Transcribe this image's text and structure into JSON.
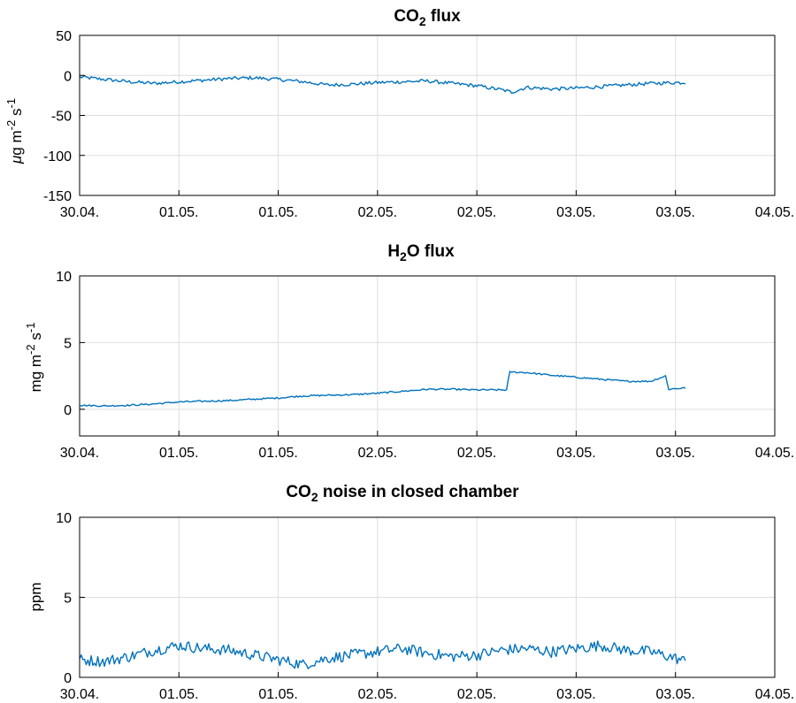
{
  "chart_data": [
    {
      "type": "line",
      "title": "CO2 flux",
      "title_main": "CO",
      "title_sub": "2",
      "title_rest": " flux",
      "ylabel": "µg m-2 s-1",
      "ylabel_parts": {
        "a": "μ",
        "b": "g m",
        "c": "-2",
        "d": " s",
        "e": "-1"
      },
      "xlim": [
        0,
        7
      ],
      "ylim": [
        -150,
        50
      ],
      "yticks": [
        -150,
        -100,
        -50,
        0,
        50
      ],
      "ytick_labels": [
        "-150",
        "-100",
        "-50",
        "0",
        "50"
      ],
      "xtick_labels": [
        "30.04.",
        "01.05.",
        "01.05.",
        "02.05.",
        "02.05.",
        "03.05.",
        "03.05.",
        "04.05."
      ],
      "grid": true,
      "color": "#0072bd",
      "series": [
        {
          "x": [
            0,
            0.25,
            0.5,
            0.75,
            1.0,
            1.25,
            1.5,
            1.75,
            2.0,
            2.25,
            2.5,
            2.75,
            3.0,
            3.25,
            3.5,
            3.75,
            4.0,
            4.25,
            4.35,
            4.5,
            4.75,
            5.0,
            5.25,
            5.5,
            5.75,
            6.0,
            6.1
          ],
          "y": [
            -2,
            -5,
            -8,
            -10,
            -8,
            -6,
            -4,
            -3,
            -5,
            -8,
            -12,
            -11,
            -9,
            -8,
            -7,
            -10,
            -13,
            -18,
            -21,
            -15,
            -17,
            -16,
            -14,
            -12,
            -10,
            -9,
            -9
          ]
        }
      ]
    },
    {
      "type": "line",
      "title": "H2O flux",
      "title_main": "H",
      "title_sub": "2",
      "title_rest": "O flux",
      "ylabel": "mg m-2 s-1",
      "ylabel_parts": {
        "a": "",
        "b": "mg m",
        "c": "-2",
        "d": " s",
        "e": "-1"
      },
      "xlim": [
        0,
        7
      ],
      "ylim": [
        -2,
        10
      ],
      "yticks": [
        0,
        5,
        10
      ],
      "ytick_labels": [
        "0",
        "5",
        "10"
      ],
      "xtick_labels": [
        "30.04.",
        "01.05.",
        "01.05.",
        "02.05.",
        "02.05.",
        "03.05.",
        "03.05.",
        "04.05."
      ],
      "grid": true,
      "color": "#0072bd",
      "series": [
        {
          "x": [
            0,
            0.25,
            0.5,
            0.75,
            1.0,
            1.25,
            1.5,
            1.75,
            2.0,
            2.25,
            2.5,
            2.75,
            3.0,
            3.25,
            3.5,
            3.75,
            4.0,
            4.3,
            4.33,
            4.5,
            4.75,
            5.0,
            5.25,
            5.5,
            5.75,
            5.9,
            5.93,
            6.0,
            6.1
          ],
          "y": [
            0.3,
            0.25,
            0.3,
            0.4,
            0.55,
            0.6,
            0.65,
            0.75,
            0.85,
            1.0,
            1.05,
            1.1,
            1.2,
            1.35,
            1.5,
            1.5,
            1.45,
            1.45,
            2.8,
            2.75,
            2.55,
            2.4,
            2.25,
            2.1,
            2.1,
            2.5,
            1.5,
            1.55,
            1.6
          ]
        }
      ]
    },
    {
      "type": "line",
      "title": "CO2 noise in closed chamber",
      "title_main": "CO",
      "title_sub": "2",
      "title_rest": " noise in closed chamber",
      "ylabel": "ppm",
      "ylabel_parts": {
        "a": "",
        "b": "ppm",
        "c": "",
        "d": "",
        "e": ""
      },
      "xlim": [
        0,
        7
      ],
      "ylim": [
        0,
        10
      ],
      "yticks": [
        0,
        5,
        10
      ],
      "ytick_labels": [
        "0",
        "5",
        "10"
      ],
      "xtick_labels": [
        "30.04.",
        "01.05.",
        "01.05.",
        "02.05.",
        "02.05.",
        "03.05.",
        "03.05.",
        "04.05."
      ],
      "grid": true,
      "color": "#0072bd",
      "series": [
        {
          "x": [
            0,
            0.25,
            0.5,
            0.75,
            1.0,
            1.25,
            1.5,
            1.75,
            2.0,
            2.25,
            2.5,
            2.75,
            3.0,
            3.25,
            3.5,
            3.75,
            4.0,
            4.25,
            4.5,
            4.75,
            5.0,
            5.25,
            5.5,
            5.75,
            6.0,
            6.1
          ],
          "y": [
            1.1,
            1.0,
            1.3,
            1.7,
            2.0,
            1.8,
            1.7,
            1.4,
            1.1,
            0.8,
            1.2,
            1.4,
            1.6,
            1.8,
            1.5,
            1.3,
            1.4,
            1.7,
            1.8,
            1.6,
            1.8,
            2.0,
            1.7,
            1.6,
            1.2,
            1.0
          ]
        }
      ]
    }
  ]
}
